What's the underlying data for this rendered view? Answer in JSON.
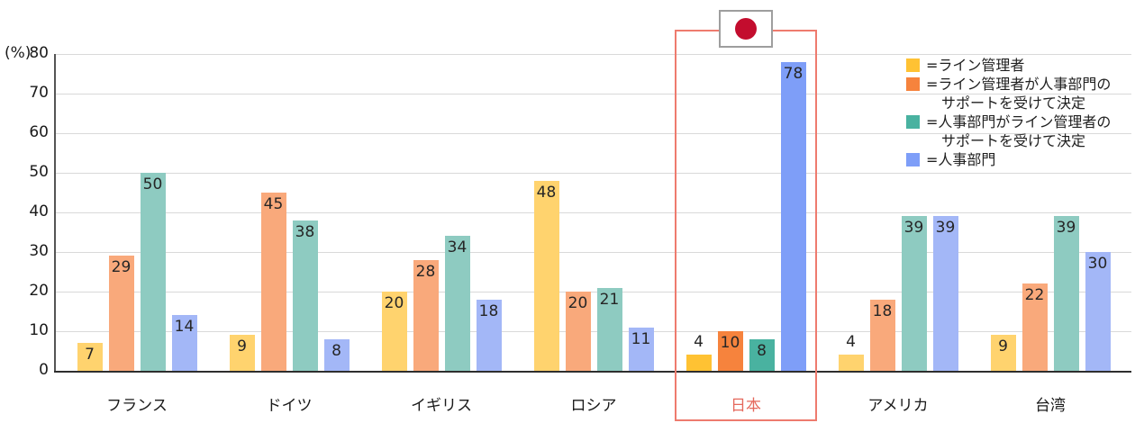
{
  "chart_data": {
    "type": "bar",
    "unit_label": "(%)",
    "ylim": [
      0,
      80
    ],
    "yticks": [
      0,
      10,
      20,
      30,
      40,
      50,
      60,
      70,
      80
    ],
    "grid": true,
    "legend_position": "top-right",
    "categories": [
      "フランス",
      "ドイツ",
      "イギリス",
      "ロシア",
      "日本",
      "アメリカ",
      "台湾"
    ],
    "highlight": {
      "category": "日本",
      "box_color": "#ee7b6e",
      "label_color": "#e5685c",
      "flag_icon": "japan-flag",
      "flag_circle_color": "#c30d2e",
      "flag_border_color": "#9e9e9e"
    },
    "series": [
      {
        "name": "ライン管理者",
        "legend_lines": [
          "=ライン管理者"
        ],
        "color": "#ffc233",
        "color_muted": "#ffd36e",
        "values": [
          7,
          9,
          20,
          48,
          4,
          4,
          9
        ]
      },
      {
        "name": "ライン管理者が人事部門のサポートを受けて決定",
        "legend_lines": [
          "=ライン管理者が人事部門の",
          "サポートを受けて決定"
        ],
        "color": "#f6833d",
        "color_muted": "#f9a97b",
        "values": [
          29,
          45,
          28,
          20,
          10,
          18,
          22
        ]
      },
      {
        "name": "人事部門がライン管理者のサポートを受けて決定",
        "legend_lines": [
          "=人事部門がライン管理者の",
          "サポートを受けて決定"
        ],
        "color": "#49b2a0",
        "color_muted": "#8ecbc1",
        "values": [
          50,
          38,
          34,
          21,
          8,
          39,
          39
        ]
      },
      {
        "name": "人事部門",
        "legend_lines": [
          "=人事部門"
        ],
        "color": "#7e9ef8",
        "color_muted": "#a3b7f7",
        "values": [
          14,
          8,
          18,
          11,
          78,
          39,
          30
        ]
      }
    ],
    "axis_colors": {
      "grid": "#d9d9d9",
      "y_axis": "#555555",
      "x_axis": "#2e2e2e"
    }
  }
}
